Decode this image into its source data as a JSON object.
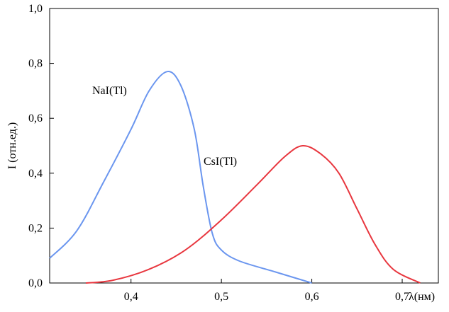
{
  "chart_data": {
    "type": "line",
    "title": "",
    "xlabel": "λ(нм)",
    "ylabel": "I (отн.ед.)",
    "xlim": [
      0.31,
      0.74
    ],
    "ylim": [
      0.0,
      1.0
    ],
    "x_ticks": [
      0.4,
      0.5,
      0.6,
      0.7
    ],
    "x_tick_labels": [
      "0,4",
      "0,5",
      "0,6",
      "0,7"
    ],
    "y_ticks": [
      0.0,
      0.2,
      0.4,
      0.6,
      0.8,
      1.0
    ],
    "y_tick_labels": [
      "0,0",
      "0,2",
      "0,4",
      "0,6",
      "0,8",
      "1,0"
    ],
    "grid": false,
    "series": [
      {
        "name": "NaI(Tl)",
        "color": "#6b96ef",
        "x": [
          0.31,
          0.34,
          0.37,
          0.4,
          0.42,
          0.44,
          0.455,
          0.47,
          0.48,
          0.49,
          0.5,
          0.52,
          0.56,
          0.6
        ],
        "y": [
          0.09,
          0.19,
          0.37,
          0.56,
          0.7,
          0.77,
          0.72,
          0.56,
          0.35,
          0.18,
          0.12,
          0.08,
          0.04,
          0.0
        ]
      },
      {
        "name": "CsI(Tl)",
        "color": "#e8373f",
        "x": [
          0.35,
          0.38,
          0.42,
          0.46,
          0.5,
          0.54,
          0.57,
          0.59,
          0.61,
          0.63,
          0.65,
          0.67,
          0.69,
          0.72
        ],
        "y": [
          0.0,
          0.01,
          0.05,
          0.12,
          0.23,
          0.36,
          0.46,
          0.5,
          0.47,
          0.4,
          0.27,
          0.14,
          0.05,
          0.0
        ]
      }
    ]
  }
}
